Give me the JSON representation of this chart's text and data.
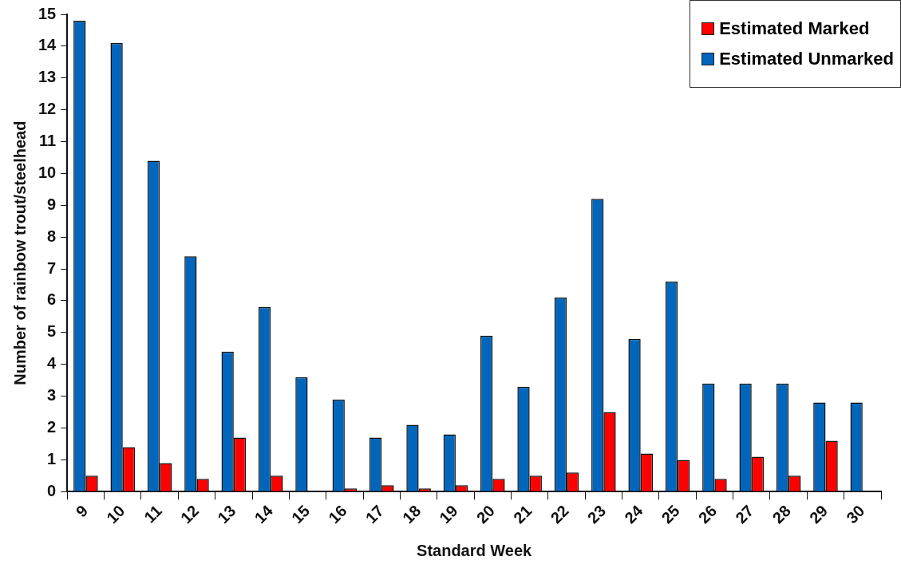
{
  "chart_data": {
    "type": "bar",
    "xlabel": "Standard Week",
    "ylabel": "Number of rainbow trout/steelhead",
    "categories": [
      "9",
      "10",
      "11",
      "12",
      "13",
      "14",
      "15",
      "16",
      "17",
      "18",
      "19",
      "20",
      "21",
      "22",
      "23",
      "24",
      "25",
      "26",
      "27",
      "28",
      "29",
      "30"
    ],
    "series": [
      {
        "name": "Estimated Unmarked",
        "color": "#0066bb",
        "values": [
          14.8,
          14.1,
          10.4,
          7.4,
          4.4,
          5.8,
          3.6,
          2.9,
          1.7,
          2.1,
          1.8,
          4.9,
          3.3,
          6.1,
          9.2,
          4.8,
          6.6,
          3.4,
          3.4,
          3.4,
          2.8,
          2.8
        ]
      },
      {
        "name": "Estimated Marked",
        "color": "#ff0000",
        "values": [
          0.5,
          1.4,
          0.9,
          0.4,
          1.7,
          0.5,
          0,
          0.1,
          0.2,
          0.1,
          0.2,
          0.4,
          0.5,
          0.6,
          2.5,
          1.2,
          1.0,
          0.4,
          1.1,
          0.5,
          1.6,
          0
        ]
      }
    ],
    "ylim": [
      0,
      15
    ],
    "yticks": [
      0,
      1,
      2,
      3,
      4,
      5,
      6,
      7,
      8,
      9,
      10,
      11,
      12,
      13,
      14,
      15
    ],
    "grid": false,
    "legend": "top right"
  }
}
